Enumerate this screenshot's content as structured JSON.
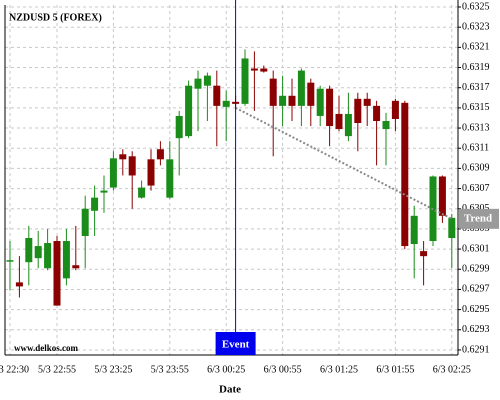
{
  "chart_data": {
    "type": "candlestick",
    "title": "NZDUSD 5 (FOREX)",
    "watermark": "www.delkos.com",
    "x_label": "Date",
    "categories": [
      "5/3 22:30",
      null,
      null,
      null,
      null,
      "5/3 22:55",
      null,
      null,
      null,
      null,
      null,
      "5/3 23:25",
      null,
      null,
      null,
      null,
      null,
      "5/3 23:55",
      null,
      null,
      null,
      null,
      null,
      "6/3 00:25",
      null,
      null,
      null,
      null,
      null,
      "6/3 00:55",
      null,
      null,
      null,
      null,
      null,
      "6/3 01:25",
      null,
      null,
      null,
      null,
      null,
      "6/3 01:55",
      null,
      null,
      null,
      null,
      null,
      "6/3 02:25"
    ],
    "open": [
      0.62998,
      0.62977,
      0.62997,
      0.63001,
      0.62991,
      0.63018,
      0.62981,
      0.62994,
      0.63023,
      0.63048,
      0.63066,
      0.63071,
      0.63104,
      0.63102,
      0.63061,
      0.63099,
      0.63109,
      0.63061,
      0.6312,
      0.63122,
      0.63169,
      0.63172,
      0.63172,
      0.63151,
      0.63156,
      0.63154,
      0.63189,
      0.63189,
      0.63179,
      0.63152,
      0.63162,
      0.63152,
      0.63175,
      0.63142,
      0.63169,
      0.63144,
      0.63122,
      0.63159,
      0.63159,
      0.63152,
      0.63129,
      0.63157,
      0.63155,
      0.63015,
      0.63008,
      0.63018,
      0.63082,
      0.63021
    ],
    "high": [
      0.63018,
      0.63003,
      0.63033,
      0.63028,
      0.6303,
      0.63023,
      0.6303,
      0.63033,
      0.63063,
      0.63073,
      0.63083,
      0.63107,
      0.63109,
      0.63107,
      0.63078,
      0.63109,
      0.63117,
      0.63117,
      0.63147,
      0.63177,
      0.63187,
      0.63185,
      0.63187,
      0.63167,
      0.63162,
      0.63208,
      0.63206,
      0.63192,
      0.63187,
      0.63182,
      0.63179,
      0.63189,
      0.63179,
      0.63172,
      0.63172,
      0.63162,
      0.63165,
      0.63165,
      0.63165,
      0.63157,
      0.63145,
      0.63159,
      0.63157,
      0.63053,
      0.63018,
      0.63083,
      0.63083,
      0.63045
    ],
    "low": [
      0.62969,
      0.62962,
      0.62974,
      0.62991,
      0.62989,
      0.62954,
      0.62974,
      0.62989,
      0.62991,
      0.63023,
      0.63046,
      0.63068,
      0.63083,
      0.6305,
      0.6306,
      0.63068,
      0.63093,
      0.6306,
      0.63083,
      0.6312,
      0.63127,
      0.63137,
      0.63112,
      0.63117,
      0.6315,
      0.63152,
      0.63147,
      0.63185,
      0.63102,
      0.63132,
      0.63137,
      0.63132,
      0.63132,
      0.63132,
      0.63112,
      0.63127,
      0.63117,
      0.63107,
      0.63132,
      0.63093,
      0.63093,
      0.63127,
      0.6301,
      0.62981,
      0.62974,
      0.63013,
      0.63036,
      0.62991
    ],
    "close": [
      0.62999,
      0.62973,
      0.63021,
      0.63013,
      0.63016,
      0.62954,
      0.63018,
      0.62991,
      0.6305,
      0.63061,
      0.63068,
      0.631,
      0.63099,
      0.63083,
      0.63071,
      0.63073,
      0.63099,
      0.63099,
      0.63142,
      0.63172,
      0.63179,
      0.63182,
      0.63152,
      0.63157,
      0.63154,
      0.63199,
      0.63187,
      0.63186,
      0.63152,
      0.63162,
      0.63152,
      0.63187,
      0.63152,
      0.63169,
      0.63132,
      0.63129,
      0.63144,
      0.63135,
      0.63152,
      0.63137,
      0.63137,
      0.63139,
      0.63013,
      0.63043,
      0.63003,
      0.63082,
      0.63043,
      0.63041
    ],
    "up_color": "#1a8c1a",
    "down_color": "#8b0000",
    "ylim": [
      0.62905,
      0.63252
    ],
    "yticks": [
      0.6291,
      0.6293,
      0.6295,
      0.6297,
      0.6299,
      0.6301,
      0.6303,
      0.6305,
      0.6307,
      0.6309,
      0.6311,
      0.6313,
      0.6315,
      0.6317,
      0.6319,
      0.6321,
      0.6323,
      0.6325
    ],
    "grid": true,
    "event": {
      "label": "Event",
      "index": 24,
      "color": "#0000ee"
    },
    "trend": {
      "label": "Trend",
      "start_index": 24,
      "start_value": 0.6315,
      "end_index": 47,
      "end_value": 0.6304,
      "color": "#888888"
    }
  }
}
